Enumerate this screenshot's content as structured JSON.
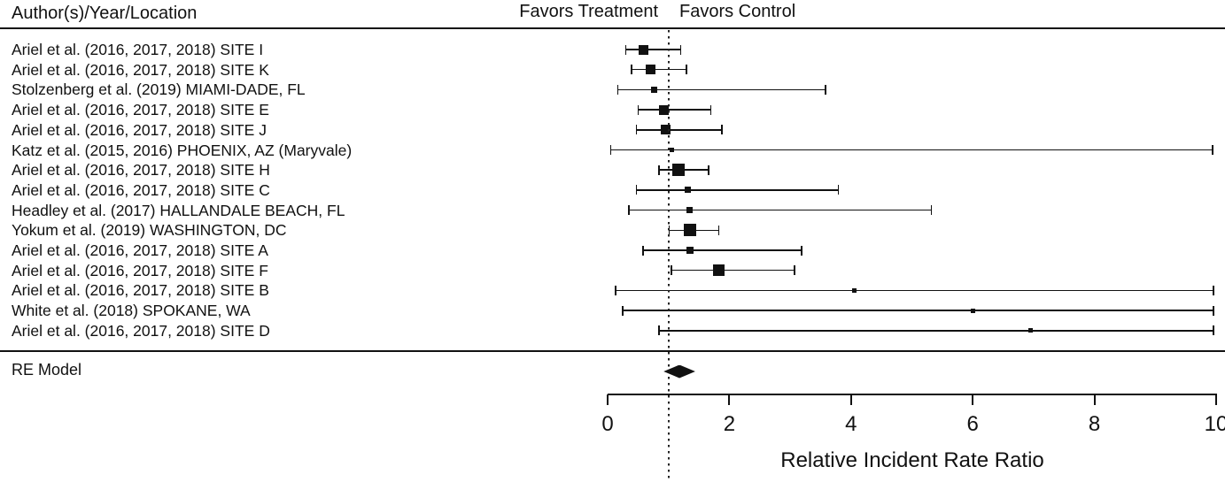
{
  "chart_data": {
    "type": "forest",
    "column_header": "Author(s)/Year/Location",
    "direction_labels": {
      "left": "Favors Treatment",
      "right": "Favors Control"
    },
    "xlabel": "Relative Incident Rate Ratio",
    "xlim": [
      0,
      10
    ],
    "xticks": [
      0,
      2,
      4,
      6,
      8,
      10
    ],
    "reference_line": 1.0,
    "grid": false,
    "studies": [
      {
        "label": "Ariel et al. (2016, 2017, 2018) SITE I",
        "estimate": 0.59,
        "ci_lower": 0.29,
        "ci_upper": 1.21,
        "square_size_px": 11
      },
      {
        "label": "Ariel et al. (2016, 2017, 2018) SITE K",
        "estimate": 0.7,
        "ci_lower": 0.38,
        "ci_upper": 1.31,
        "square_size_px": 11
      },
      {
        "label": "Stolzenberg et al. (2019) MIAMI-DADE, FL",
        "estimate": 0.77,
        "ci_lower": 0.16,
        "ci_upper": 3.59,
        "square_size_px": 7
      },
      {
        "label": "Ariel et al. (2016, 2017, 2018) SITE E",
        "estimate": 0.93,
        "ci_lower": 0.49,
        "ci_upper": 1.71,
        "square_size_px": 11
      },
      {
        "label": "Ariel et al. (2016, 2017, 2018) SITE J",
        "estimate": 0.95,
        "ci_lower": 0.46,
        "ci_upper": 1.89,
        "square_size_px": 11
      },
      {
        "label": "Katz et al. (2015, 2016) PHOENIX, AZ (Maryvale)",
        "estimate": 1.06,
        "ci_lower": 0.04,
        "ci_upper": 9.95,
        "square_size_px": 5
      },
      {
        "label": "Ariel et al. (2016, 2017, 2018) SITE H",
        "estimate": 1.16,
        "ci_lower": 0.83,
        "ci_upper": 1.67,
        "square_size_px": 14
      },
      {
        "label": "Ariel et al. (2016, 2017, 2018) SITE C",
        "estimate": 1.32,
        "ci_lower": 0.46,
        "ci_upper": 3.8,
        "square_size_px": 7
      },
      {
        "label": "Headley et al. (2017) HALLANDALE BEACH, FL",
        "estimate": 1.34,
        "ci_lower": 0.34,
        "ci_upper": 5.33,
        "square_size_px": 7
      },
      {
        "label": "Yokum et al. (2019) WASHINGTON, DC",
        "estimate": 1.35,
        "ci_lower": 1.0,
        "ci_upper": 1.84,
        "square_size_px": 14
      },
      {
        "label": "Ariel et al. (2016, 2017, 2018) SITE A",
        "estimate": 1.36,
        "ci_lower": 0.57,
        "ci_upper": 3.2,
        "square_size_px": 8
      },
      {
        "label": "Ariel et al. (2016, 2017, 2018) SITE F",
        "estimate": 1.82,
        "ci_lower": 1.04,
        "ci_upper": 3.08,
        "square_size_px": 13
      },
      {
        "label": "Ariel et al. (2016, 2017, 2018) SITE B",
        "estimate": 4.05,
        "ci_lower": 0.12,
        "ci_upper": 9.97,
        "square_size_px": 5
      },
      {
        "label": "White et al. (2018) SPOKANE, WA",
        "estimate": 6.0,
        "ci_lower": 0.24,
        "ci_upper": 9.97,
        "square_size_px": 5
      },
      {
        "label": "Ariel et al. (2016, 2017, 2018) SITE D",
        "estimate": 6.95,
        "ci_lower": 0.83,
        "ci_upper": 9.97,
        "square_size_px": 5
      }
    ],
    "summary": {
      "label": "RE Model",
      "estimate": 1.17,
      "ci_lower": 0.92,
      "ci_upper": 1.44
    },
    "colors": {
      "foreground": "#111111",
      "background": "#ffffff"
    }
  }
}
